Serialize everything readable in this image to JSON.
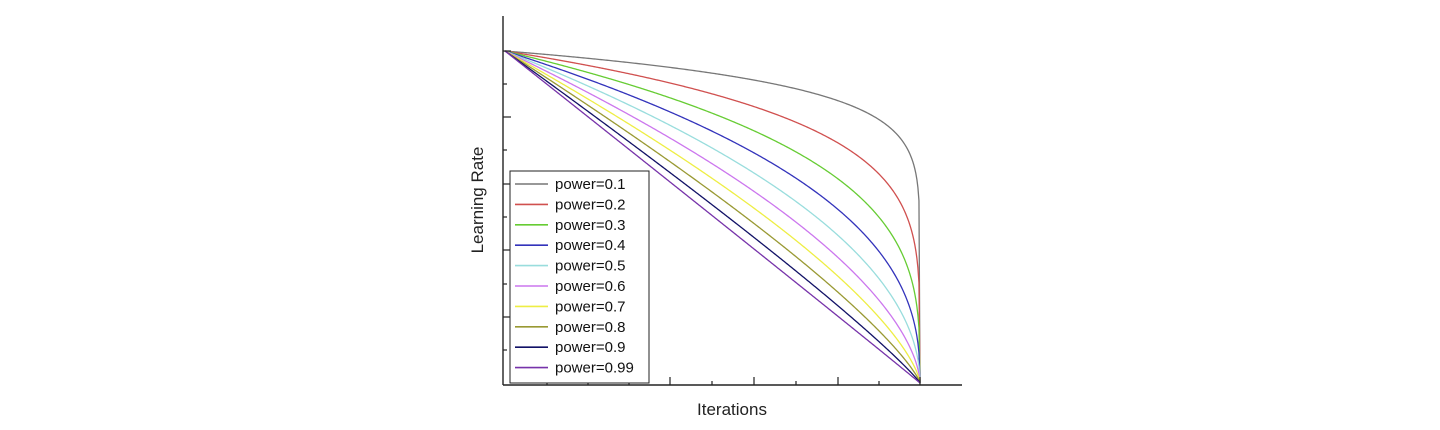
{
  "chart_data": {
    "type": "line",
    "title": "",
    "xlabel": "Iterations",
    "ylabel": "Learning Rate",
    "xlim": [
      0,
      1
    ],
    "ylim": [
      0,
      1
    ],
    "grid": false,
    "legend_position": "bottom-left",
    "formula": "",
    "series": [
      {
        "name": "power=0.1",
        "power": 0.1,
        "color": "#777777"
      },
      {
        "name": "power=0.2",
        "power": 0.2,
        "color": "#d0504f"
      },
      {
        "name": "power=0.3",
        "power": 0.3,
        "color": "#66cc33"
      },
      {
        "name": "power=0.4",
        "power": 0.4,
        "color": "#3333bb"
      },
      {
        "name": "power=0.5",
        "power": 0.5,
        "color": "#99dddd"
      },
      {
        "name": "power=0.6",
        "power": 0.6,
        "color": "#cc77ee"
      },
      {
        "name": "power=0.7",
        "power": 0.7,
        "color": "#eeee44"
      },
      {
        "name": "power=0.8",
        "power": 0.8,
        "color": "#999933"
      },
      {
        "name": "power=0.9",
        "power": 0.9,
        "color": "#111166"
      },
      {
        "name": "power=0.99",
        "power": 0.99,
        "color": "#7733aa"
      }
    ]
  }
}
